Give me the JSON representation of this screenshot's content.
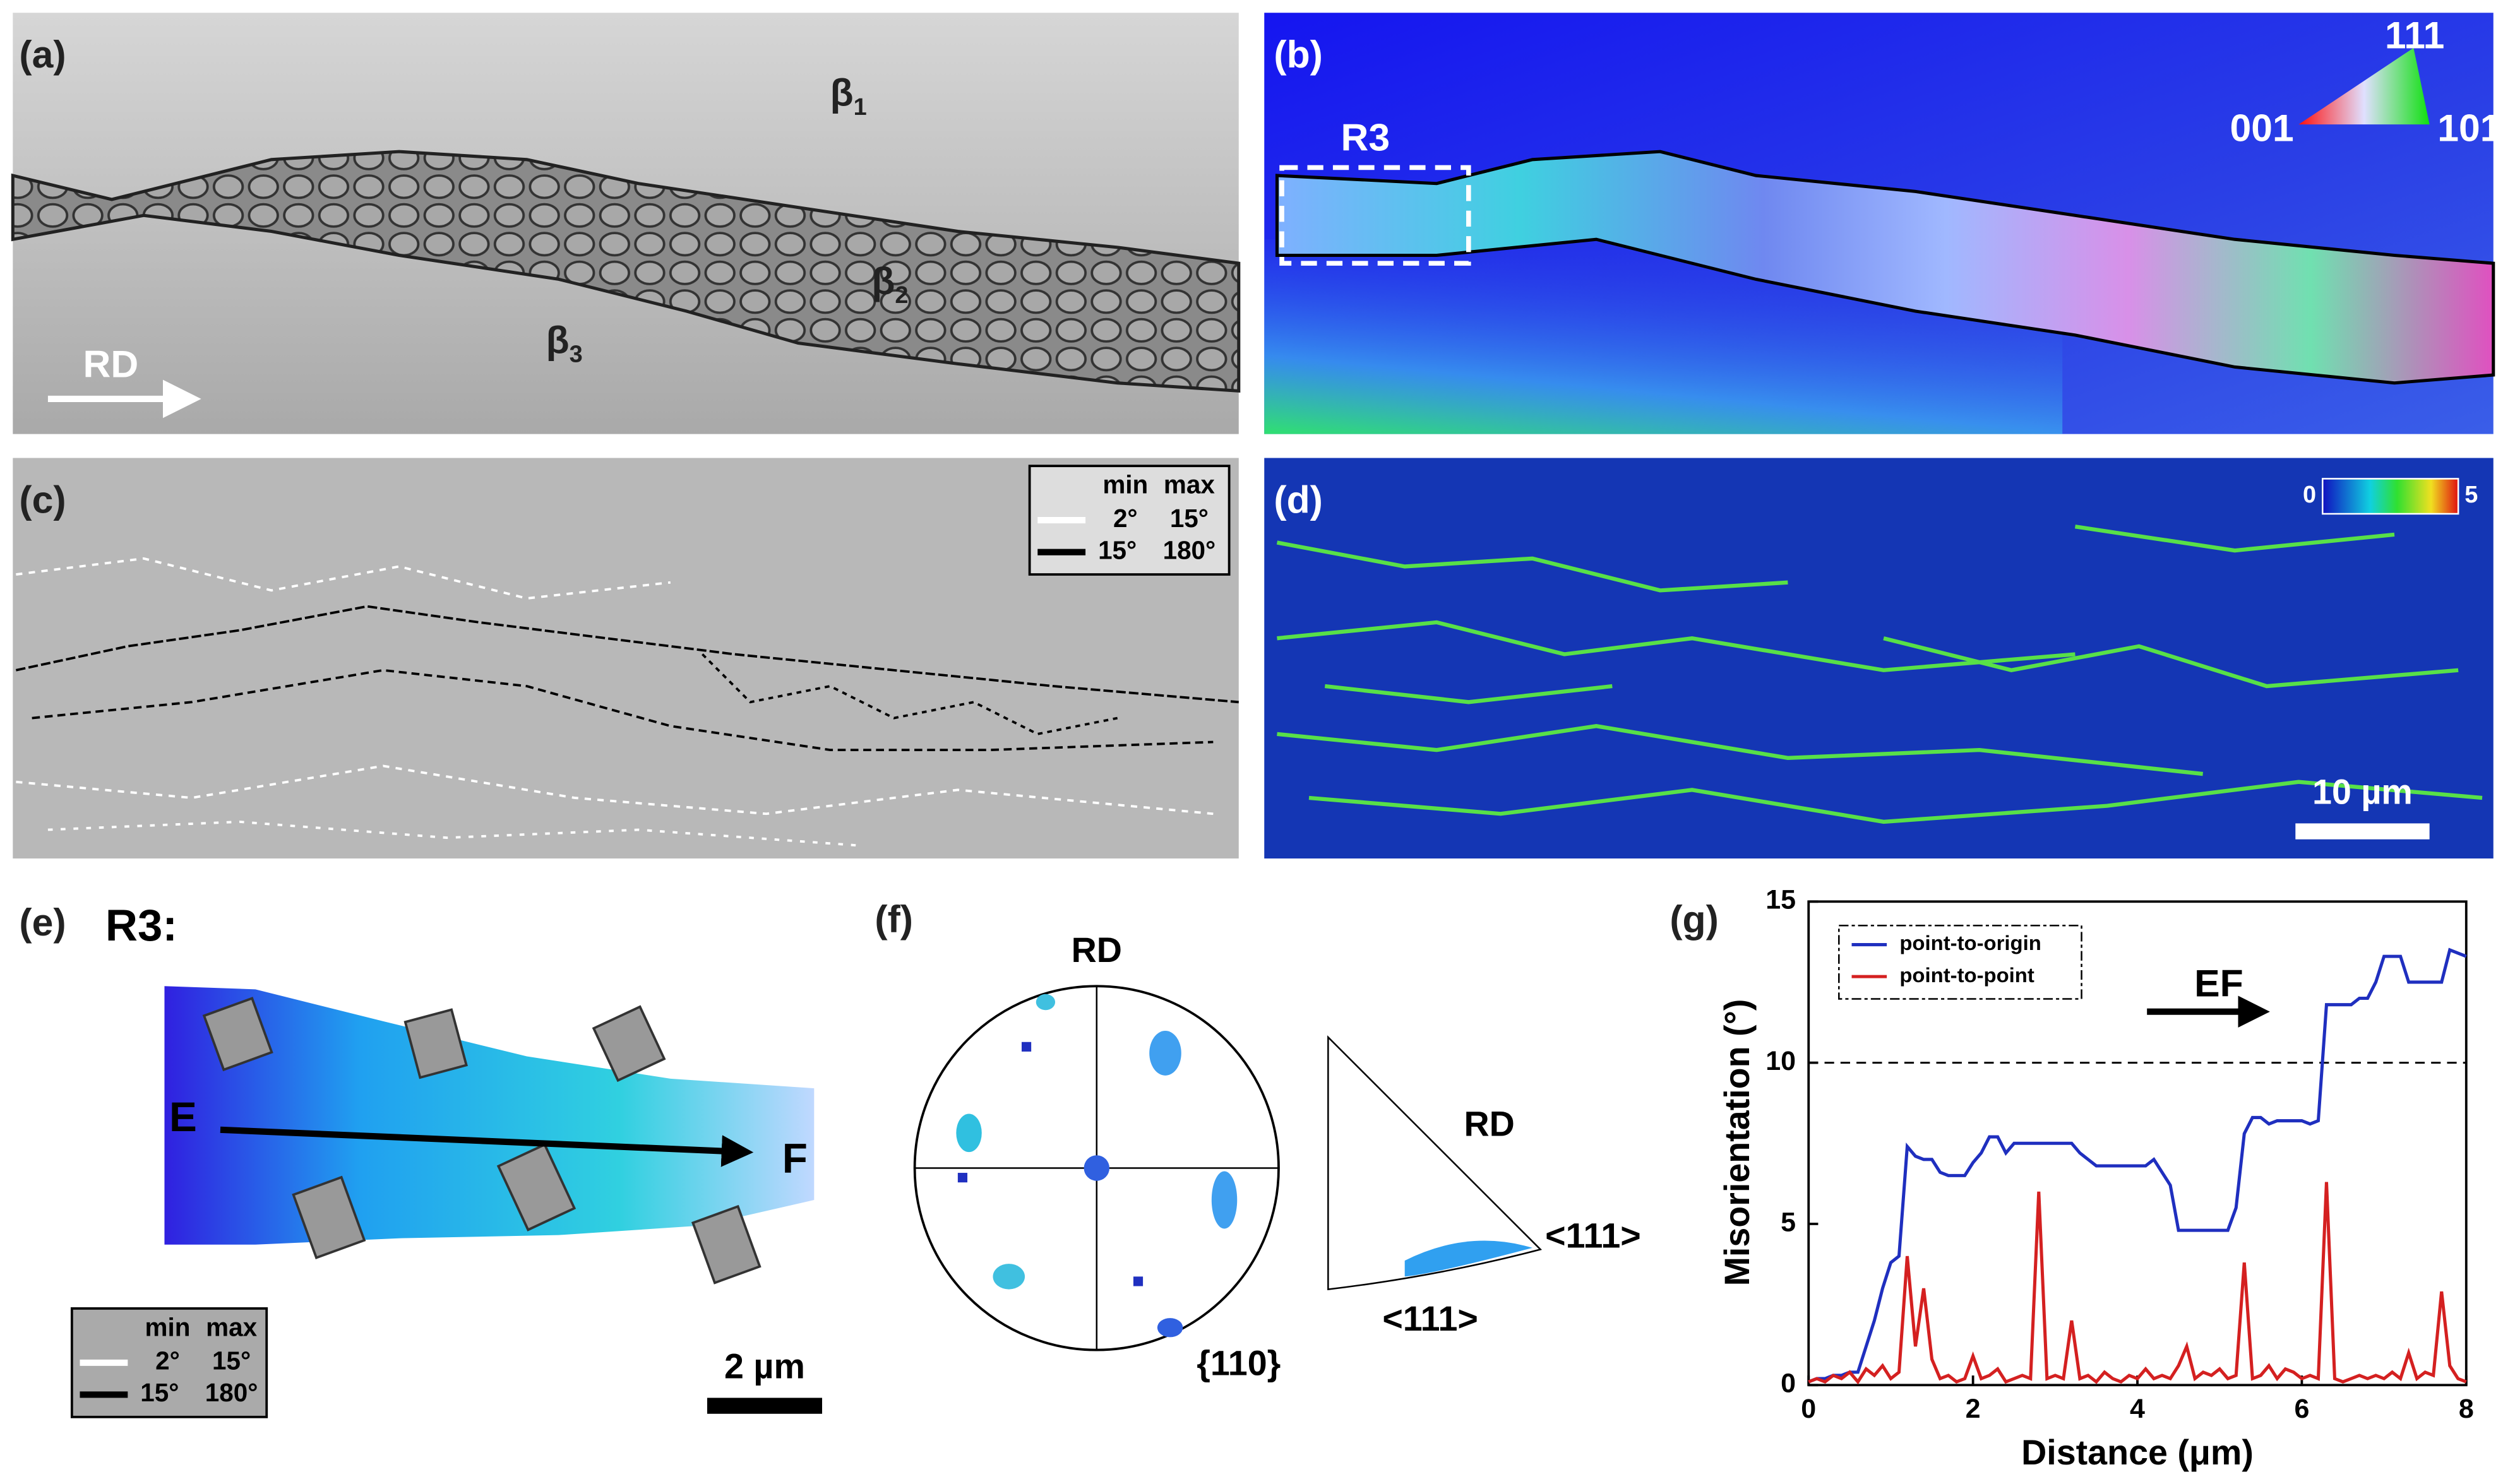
{
  "panels": {
    "a": {
      "label": "(a)",
      "grains": [
        {
          "symbol": "β",
          "index": "1"
        },
        {
          "symbol": "β",
          "index": "2"
        },
        {
          "symbol": "β",
          "index": "3"
        }
      ],
      "direction": "RD"
    },
    "b": {
      "label": "(b)",
      "region": "R3",
      "ipf": {
        "top": "111",
        "left": "001",
        "right": "101"
      }
    },
    "c": {
      "label": "(c)",
      "legend": {
        "header": [
          "min",
          "max"
        ],
        "rows": [
          [
            "2°",
            "15°"
          ],
          [
            "15°",
            "180°"
          ]
        ]
      }
    },
    "d": {
      "label": "(d)",
      "colorbar": {
        "min": 0,
        "max": 5
      },
      "scale_bar": "10 µm"
    },
    "e": {
      "label": "(e)",
      "title": "R3:",
      "start": "E",
      "end": "F",
      "legend": {
        "header": [
          "min",
          "max"
        ],
        "rows": [
          [
            "2°",
            "15°"
          ],
          [
            "15°",
            "180°"
          ]
        ]
      },
      "scale_bar": "2 µm"
    },
    "f": {
      "label": "(f)",
      "pole_figure": {
        "direction": "RD",
        "plane": "{110}"
      },
      "ipf": {
        "direction": "RD",
        "corner": "<111>",
        "bottom": "<111>"
      }
    }
  },
  "chart_data": {
    "type": "line",
    "panel_label": "(g)",
    "xlabel": "Distance (μm)",
    "ylabel": "Misorientation (°)",
    "xlim": [
      0,
      8
    ],
    "ylim": [
      0,
      15
    ],
    "xticks": [
      0,
      2,
      4,
      6,
      8
    ],
    "yticks": [
      0,
      5,
      10,
      15
    ],
    "reference_line": 10,
    "annotation": "EF",
    "legend": "upper left",
    "x": [
      0,
      0.1,
      0.2,
      0.3,
      0.4,
      0.5,
      0.6,
      0.7,
      0.8,
      0.9,
      1,
      1.1,
      1.2,
      1.3,
      1.4,
      1.5,
      1.6,
      1.7,
      1.8,
      1.9,
      2,
      2.1,
      2.2,
      2.3,
      2.4,
      2.5,
      2.6,
      2.7,
      2.8,
      2.9,
      3,
      3.1,
      3.2,
      3.3,
      3.4,
      3.5,
      3.6,
      3.7,
      3.8,
      3.9,
      4,
      4.1,
      4.2,
      4.3,
      4.4,
      4.5,
      4.6,
      4.7,
      4.8,
      4.9,
      5,
      5.1,
      5.2,
      5.3,
      5.4,
      5.5,
      5.6,
      5.7,
      5.8,
      5.9,
      6,
      6.1,
      6.2,
      6.3,
      6.4,
      6.5,
      6.6,
      6.7,
      6.8,
      6.9,
      7,
      7.1,
      7.2,
      7.3,
      7.4,
      7.5,
      7.6,
      7.7,
      7.8,
      7.9,
      8
    ],
    "series": [
      {
        "name": "point-to-origin",
        "color": "#1f2fbf",
        "values": [
          0.1,
          0.2,
          0.2,
          0.3,
          0.3,
          0.4,
          0.4,
          1.2,
          2.0,
          3.0,
          3.8,
          4.0,
          7.4,
          7.1,
          7.0,
          7.0,
          6.6,
          6.5,
          6.5,
          6.5,
          6.9,
          7.2,
          7.7,
          7.7,
          7.2,
          7.5,
          7.5,
          7.5,
          7.5,
          7.5,
          7.5,
          7.5,
          7.5,
          7.2,
          7.0,
          6.8,
          6.8,
          6.8,
          6.8,
          6.8,
          6.8,
          6.8,
          7.0,
          6.6,
          6.2,
          4.8,
          4.8,
          4.8,
          4.8,
          4.8,
          4.8,
          4.8,
          5.5,
          7.8,
          8.3,
          8.3,
          8.1,
          8.2,
          8.2,
          8.2,
          8.2,
          8.1,
          8.2,
          11.8,
          11.8,
          11.8,
          11.8,
          12.0,
          12.0,
          12.5,
          13.3,
          13.3,
          13.3,
          12.5,
          12.5,
          12.5,
          12.5,
          12.5,
          13.5,
          13.4,
          13.3
        ]
      },
      {
        "name": "point-to-point",
        "color": "#d42020",
        "values": [
          0.1,
          0.2,
          0.1,
          0.3,
          0.2,
          0.4,
          0.1,
          0.5,
          0.3,
          0.6,
          0.2,
          0.4,
          4.0,
          1.2,
          3.0,
          0.8,
          0.2,
          0.3,
          0.1,
          0.2,
          0.9,
          0.2,
          0.3,
          0.5,
          0.1,
          0.2,
          0.3,
          0.2,
          6.0,
          0.2,
          0.3,
          0.2,
          2.0,
          0.2,
          0.3,
          0.1,
          0.4,
          0.2,
          0.1,
          0.3,
          0.2,
          0.5,
          0.2,
          0.3,
          0.2,
          0.6,
          1.2,
          0.2,
          0.4,
          0.3,
          0.5,
          0.2,
          0.3,
          3.8,
          0.2,
          0.3,
          0.6,
          0.2,
          0.5,
          0.4,
          0.2,
          0.3,
          0.2,
          6.3,
          0.2,
          0.1,
          0.2,
          0.3,
          0.2,
          0.3,
          0.2,
          0.4,
          0.2,
          1.0,
          0.2,
          0.4,
          0.3,
          2.9,
          0.6,
          0.2,
          0.1
        ]
      }
    ]
  }
}
